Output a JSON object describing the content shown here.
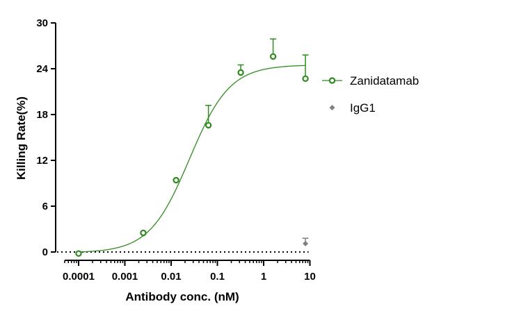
{
  "chart_data": {
    "type": "scatter",
    "xlabel": "Antibody conc. (nM)",
    "ylabel": "Killing Rate(%)",
    "xscale": "log",
    "xlim": [
      5e-05,
      10
    ],
    "ylim": [
      0,
      30
    ],
    "x_ticks": [
      0.0001,
      0.001,
      0.01,
      0.1,
      1,
      10
    ],
    "x_tick_labels": [
      "0.0001",
      "0.001",
      "0.01",
      "0.1",
      "1",
      "10"
    ],
    "y_ticks": [
      0,
      6,
      12,
      18,
      24,
      30
    ],
    "y_tick_labels": [
      "0",
      "6",
      "12",
      "18",
      "24",
      "30"
    ],
    "reference_line": {
      "y": 0,
      "style": "dotted"
    },
    "legend_position": "right",
    "series": [
      {
        "name": "Zanidatamab",
        "color": "#2e8b1e",
        "marker": "open-circle",
        "fit": "sigmoidal",
        "fit_params": {
          "bottom": -0.1,
          "top": 24.5,
          "ec50": 0.025,
          "hill": 1.0
        },
        "points": [
          {
            "x": 0.0001,
            "y": -0.2,
            "err": 0
          },
          {
            "x": 0.0025,
            "y": 2.5,
            "err": 0
          },
          {
            "x": 0.0128,
            "y": 9.4,
            "err": 0
          },
          {
            "x": 0.064,
            "y": 16.6,
            "err": 2.6
          },
          {
            "x": 0.32,
            "y": 23.5,
            "err": 1.0
          },
          {
            "x": 1.6,
            "y": 25.6,
            "err": 2.3
          },
          {
            "x": 8.0,
            "y": 22.7,
            "err": 3.1
          }
        ]
      },
      {
        "name": "IgG1",
        "color": "#808080",
        "marker": "diamond",
        "points": [
          {
            "x": 8.0,
            "y": 1.1,
            "err": 0.7
          }
        ]
      }
    ]
  }
}
